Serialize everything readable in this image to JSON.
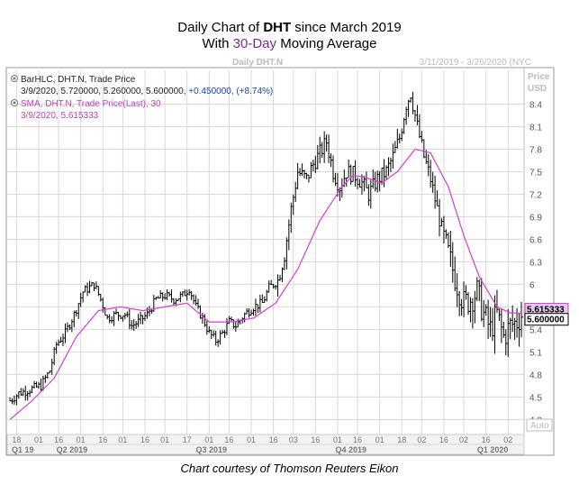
{
  "heading": {
    "line1_pre": "Daily Chart of ",
    "line1_bold": "DHT",
    "line1_post": " since March 2019",
    "line2_pre": "With ",
    "line2_accent": "30-Day",
    "line2_post": " Moving Average"
  },
  "footer": "Chart courtesy of Thomson Reuters Eikon",
  "colors": {
    "price_bar": "#000000",
    "sma": "#d63cd6",
    "grid": "#d8d8d8",
    "axis_text": "#555555",
    "legend_blue": "#1a3fc0",
    "legend_magenta": "#c040c0",
    "last_price_box": "#000000",
    "sma_box": "#e8c8f0"
  },
  "chart_data": {
    "type": "ohlc",
    "title": "Daily DHT.N",
    "date_range_label": "3/11/2019 - 3/26/2020 (NYC",
    "ylabel_line1": "Price",
    "ylabel_line2": "USD",
    "auto_label": "Auto",
    "ylim": [
      4.0,
      8.85
    ],
    "yticks": [
      "4.2",
      "4.5",
      "4.8",
      "5.1",
      "5.4",
      "5.7",
      "6",
      "6.3",
      "6.6",
      "6.9",
      "7.2",
      "7.5",
      "7.8",
      "8.1",
      "8.4"
    ],
    "x_day_labels": [
      "18",
      "01",
      "16",
      "01",
      "16",
      "01",
      "16",
      "01",
      "17",
      "01",
      "16",
      "01",
      "16",
      "03",
      "16",
      "01",
      "16",
      "01",
      "18",
      "02",
      "16",
      "02",
      "16",
      "02",
      "16"
    ],
    "x_months": [
      {
        "label": "Q1 19",
        "bold": true,
        "day_index": 0
      },
      {
        "label": "Q2 2019",
        "bold": true,
        "day_index": 21
      },
      {
        "label": "Q3 2019",
        "bold": true,
        "day_index": 84
      },
      {
        "label": "Q4 2019",
        "bold": true,
        "day_index": 147
      },
      {
        "label": "Q1 2020",
        "bold": true,
        "day_index": 211
      }
    ],
    "legend": {
      "series1_label": "BarHLC, DHT.N, Trade Price",
      "series1_values": "3/9/2020, 5.720000, 5.260000, 5.600000, ",
      "series1_change": "+0.450000, (+8.74%)",
      "series2_label": "SMA, DHT.N, Trade Price(Last), 30",
      "series2_values": "3/9/2020, 5.615333"
    },
    "last_price_label": "5.600000",
    "sma_label": "5.615333",
    "price_anchors": [
      [
        0,
        4.45
      ],
      [
        4,
        4.55
      ],
      [
        9,
        4.6
      ],
      [
        14,
        4.65
      ],
      [
        18,
        4.85
      ],
      [
        21,
        5.2
      ],
      [
        25,
        5.35
      ],
      [
        29,
        5.6
      ],
      [
        33,
        5.9
      ],
      [
        38,
        6.0
      ],
      [
        41,
        5.8
      ],
      [
        44,
        5.55
      ],
      [
        48,
        5.6
      ],
      [
        52,
        5.6
      ],
      [
        55,
        5.45
      ],
      [
        58,
        5.5
      ],
      [
        62,
        5.6
      ],
      [
        66,
        5.8
      ],
      [
        70,
        5.85
      ],
      [
        74,
        5.8
      ],
      [
        78,
        5.85
      ],
      [
        81,
        5.95
      ],
      [
        84,
        5.7
      ],
      [
        87,
        5.55
      ],
      [
        90,
        5.35
      ],
      [
        93,
        5.25
      ],
      [
        96,
        5.35
      ],
      [
        99,
        5.5
      ],
      [
        102,
        5.45
      ],
      [
        106,
        5.6
      ],
      [
        110,
        5.7
      ],
      [
        114,
        5.75
      ],
      [
        117,
        5.95
      ],
      [
        121,
        6.05
      ],
      [
        124,
        6.4
      ],
      [
        127,
        7.0
      ],
      [
        130,
        7.5
      ],
      [
        134,
        7.4
      ],
      [
        137,
        7.6
      ],
      [
        140,
        7.75
      ],
      [
        143,
        7.9
      ],
      [
        146,
        7.5
      ],
      [
        149,
        7.3
      ],
      [
        152,
        7.5
      ],
      [
        156,
        7.45
      ],
      [
        159,
        7.35
      ],
      [
        162,
        7.2
      ],
      [
        166,
        7.4
      ],
      [
        170,
        7.5
      ],
      [
        173,
        7.7
      ],
      [
        176,
        7.95
      ],
      [
        179,
        8.4
      ],
      [
        181,
        8.55
      ],
      [
        184,
        8.1
      ],
      [
        187,
        7.7
      ],
      [
        190,
        7.4
      ],
      [
        193,
        7.0
      ],
      [
        196,
        6.6
      ],
      [
        199,
        6.3
      ],
      [
        202,
        6.0
      ],
      [
        205,
        5.75
      ],
      [
        208,
        5.8
      ],
      [
        211,
        5.9
      ],
      [
        214,
        5.6
      ],
      [
        217,
        5.4
      ],
      [
        220,
        5.6
      ],
      [
        223,
        5.3
      ],
      [
        226,
        5.45
      ],
      [
        229,
        5.5
      ],
      [
        231,
        5.6
      ]
    ],
    "sma_anchors": [
      [
        0,
        4.2
      ],
      [
        10,
        4.45
      ],
      [
        20,
        4.75
      ],
      [
        30,
        5.3
      ],
      [
        40,
        5.65
      ],
      [
        50,
        5.7
      ],
      [
        60,
        5.65
      ],
      [
        70,
        5.7
      ],
      [
        80,
        5.75
      ],
      [
        90,
        5.5
      ],
      [
        100,
        5.5
      ],
      [
        110,
        5.55
      ],
      [
        120,
        5.75
      ],
      [
        130,
        6.2
      ],
      [
        140,
        6.85
      ],
      [
        150,
        7.3
      ],
      [
        155,
        7.45
      ],
      [
        160,
        7.43
      ],
      [
        168,
        7.35
      ],
      [
        175,
        7.5
      ],
      [
        183,
        7.8
      ],
      [
        190,
        7.75
      ],
      [
        198,
        7.3
      ],
      [
        205,
        6.65
      ],
      [
        212,
        6.1
      ],
      [
        220,
        5.7
      ],
      [
        226,
        5.62
      ],
      [
        231,
        5.615
      ]
    ],
    "total_days": 232
  }
}
